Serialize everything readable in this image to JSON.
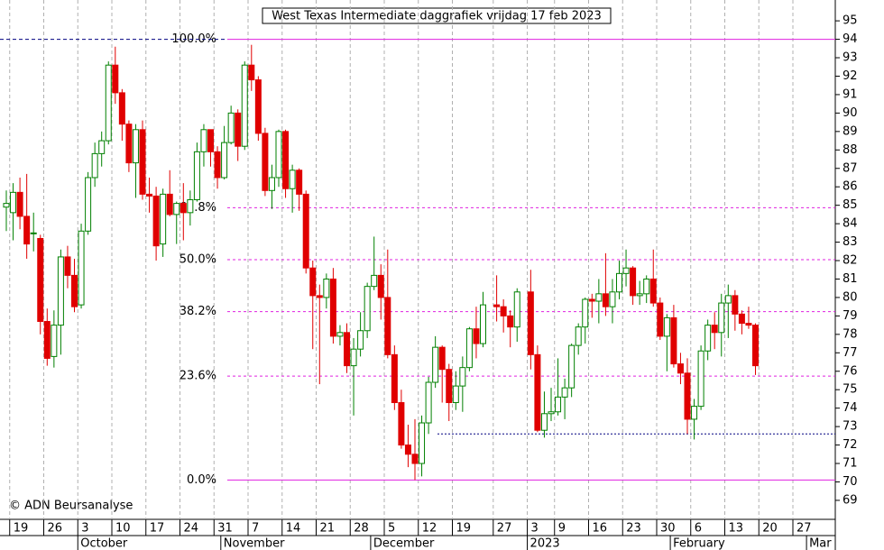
{
  "chart_data": {
    "type": "candlestick",
    "title": "West Texas Intermediate daggrafiek vrijdag 17 feb 2023",
    "annotation": "© ADN Beursanalyse",
    "categories": [
      null,
      "19",
      null,
      null,
      null,
      null,
      "26",
      null,
      null,
      null,
      null,
      "3",
      null,
      null,
      null,
      null,
      "10",
      null,
      null,
      null,
      null,
      "17",
      null,
      null,
      null,
      null,
      "24",
      null,
      null,
      null,
      null,
      "31",
      null,
      null,
      null,
      null,
      "7",
      null,
      null,
      null,
      null,
      "14",
      null,
      null,
      null,
      null,
      "21",
      null,
      null,
      null,
      null,
      "28",
      null,
      null,
      null,
      null,
      "5",
      null,
      null,
      null,
      null,
      "12",
      null,
      null,
      null,
      null,
      "19",
      null,
      null,
      null,
      null,
      null,
      "27",
      null,
      null,
      null,
      null,
      "3",
      null,
      null,
      null,
      "9",
      null,
      null,
      null,
      null,
      "16",
      null,
      null,
      null,
      null,
      "23",
      null,
      null,
      null,
      null,
      "30",
      null,
      null,
      null,
      null,
      "6",
      null,
      null,
      null,
      null,
      "13",
      null,
      null,
      null,
      null,
      "20",
      null,
      null,
      null,
      null,
      "27",
      null,
      null,
      null,
      null
    ],
    "months": [
      null,
      null,
      null,
      null,
      null,
      null,
      null,
      null,
      null,
      null,
      null,
      "October",
      null,
      null,
      null,
      null,
      null,
      null,
      null,
      null,
      null,
      null,
      null,
      null,
      null,
      null,
      null,
      null,
      null,
      null,
      null,
      null,
      "November",
      null,
      null,
      null,
      null,
      null,
      null,
      null,
      null,
      null,
      null,
      null,
      null,
      null,
      null,
      null,
      null,
      null,
      null,
      null,
      null,
      null,
      "December",
      null,
      null,
      null,
      null,
      null,
      null,
      null,
      null,
      null,
      null,
      null,
      null,
      null,
      null,
      null,
      null,
      null,
      null,
      null,
      null,
      null,
      null,
      "2023",
      null,
      null,
      null,
      null,
      null,
      null,
      null,
      null,
      null,
      null,
      null,
      null,
      null,
      null,
      null,
      null,
      null,
      null,
      null,
      null,
      "February",
      null,
      null,
      null,
      null,
      null,
      null,
      null,
      null,
      null,
      null,
      null,
      null,
      null,
      null,
      null,
      null,
      null,
      null,
      null,
      "Mar",
      null,
      null
    ],
    "open": [
      84.9,
      84.6,
      85.7,
      84.4,
      83.5,
      83.2,
      78.7,
      76.8,
      78.5,
      82.2,
      81.2,
      79.6,
      83.6,
      86.5,
      87.8,
      88.5,
      92.6,
      91.1,
      89.4,
      87.3,
      89.1,
      85.6,
      85.5,
      82.9,
      85.6,
      84.5,
      85.1,
      84.6,
      85.3,
      87.9,
      89.1,
      87.9,
      86.5,
      88.4,
      90.0,
      88.2,
      92.6,
      91.8,
      88.9,
      85.8,
      86.5,
      89.0,
      85.9,
      86.9,
      85.6,
      81.6,
      80.1,
      80.0,
      81.0,
      77.9,
      78.1,
      76.3,
      77.2,
      78.2,
      80.6,
      81.2,
      80.0,
      76.9,
      74.3,
      72.0,
      71.5,
      71.0,
      73.2,
      75.4,
      77.3,
      76.1,
      74.3,
      75.2,
      76.2,
      78.3,
      77.5,
      null,
      79.6,
      79.5,
      79.0,
      78.4,
      null,
      80.3,
      76.9,
      72.8,
      73.7,
      73.8,
      74.6,
      75.1,
      77.4,
      78.4,
      79.9,
      79.8,
      80.2,
      79.5,
      80.3,
      81.3,
      81.6,
      80.1,
      80.2,
      81.0,
      79.7,
      77.9,
      78.9,
      76.4,
      75.9,
      73.4,
      74.1,
      77.1,
      78.5,
      78.1,
      79.7,
      80.1,
      79.1,
      78.6,
      78.5,
      null,
      null,
      null,
      null,
      null,
      null,
      null,
      null,
      null,
      null
    ],
    "high": [
      85.8,
      86.2,
      86.5,
      86.7,
      84.6,
      83.4,
      79.4,
      79.3,
      82.6,
      82.8,
      82.1,
      84.0,
      86.8,
      88.4,
      89.0,
      92.8,
      93.6,
      91.3,
      89.6,
      89.4,
      89.6,
      86.5,
      86.0,
      85.9,
      86.9,
      85.2,
      86.2,
      85.8,
      88.4,
      89.4,
      89.1,
      88.2,
      89.3,
      90.4,
      90.2,
      92.8,
      93.7,
      92.0,
      89.2,
      87.2,
      89.1,
      89.1,
      87.2,
      87.0,
      85.8,
      82.0,
      80.7,
      81.3,
      81.6,
      78.5,
      78.6,
      77.8,
      79.2,
      80.8,
      83.3,
      81.8,
      82.6,
      77.4,
      75.0,
      73.1,
      73.4,
      73.6,
      75.7,
      77.9,
      77.4,
      76.4,
      76.0,
      76.8,
      78.4,
      79.5,
      80.3,
      null,
      81.2,
      79.9,
      79.3,
      80.5,
      null,
      81.5,
      77.4,
      74.9,
      75.1,
      76.7,
      75.6,
      77.5,
      78.6,
      80.0,
      80.2,
      81.0,
      82.4,
      81.0,
      82.0,
      82.6,
      81.7,
      80.9,
      81.2,
      82.6,
      80.0,
      79.1,
      79.6,
      77.0,
      76.7,
      74.5,
      77.4,
      78.8,
      79.2,
      80.2,
      80.7,
      80.4,
      79.3,
      79.5,
      78.6,
      null,
      null,
      null,
      null,
      null,
      null,
      null,
      null,
      null,
      null
    ],
    "low": [
      83.6,
      83.1,
      83.7,
      82.1,
      82.5,
      78.0,
      76.3,
      76.2,
      76.9,
      80.5,
      79.2,
      79.4,
      83.4,
      86.0,
      87.1,
      88.3,
      90.5,
      88.5,
      86.8,
      85.4,
      85.3,
      84.6,
      82.0,
      82.2,
      84.4,
      82.9,
      83.1,
      83.9,
      85.2,
      87.1,
      87.1,
      85.9,
      86.4,
      88.3,
      87.4,
      88.0,
      91.2,
      88.5,
      85.5,
      84.8,
      86.0,
      85.4,
      84.6,
      84.7,
      81.3,
      77.2,
      75.3,
      79.4,
      77.5,
      77.4,
      75.9,
      73.6,
      76.8,
      77.8,
      80.4,
      78.8,
      76.7,
      73.9,
      71.8,
      70.8,
      70.1,
      70.3,
      72.6,
      75.1,
      74.3,
      73.3,
      73.9,
      73.8,
      76.0,
      76.7,
      77.3,
      null,
      78.7,
      78.1,
      77.3,
      77.6,
      null,
      76.1,
      72.7,
      72.4,
      73.3,
      73.6,
      73.4,
      74.6,
      76.9,
      77.5,
      78.9,
      78.6,
      79.0,
      78.6,
      79.9,
      80.6,
      79.6,
      79.6,
      79.7,
      79.5,
      77.7,
      76.0,
      76.2,
      75.3,
      72.6,
      72.3,
      73.9,
      76.6,
      77.2,
      76.8,
      77.8,
      78.2,
      78.0,
      78.3,
      75.8,
      null,
      null,
      null,
      null,
      null,
      null,
      null,
      null,
      null,
      null
    ],
    "close": [
      85.1,
      85.7,
      84.4,
      82.9,
      83.5,
      78.7,
      76.7,
      78.5,
      82.2,
      81.2,
      79.5,
      83.6,
      86.5,
      87.8,
      88.5,
      92.6,
      91.1,
      89.4,
      87.3,
      89.1,
      85.6,
      85.5,
      82.8,
      85.6,
      84.5,
      85.1,
      84.6,
      85.3,
      87.9,
      89.1,
      87.9,
      86.5,
      88.4,
      90.0,
      88.2,
      92.6,
      91.8,
      88.9,
      85.8,
      86.5,
      89.0,
      85.9,
      86.9,
      85.6,
      81.6,
      80.1,
      80.0,
      81.0,
      77.9,
      78.1,
      76.3,
      77.2,
      78.2,
      80.6,
      81.2,
      80.0,
      76.9,
      74.3,
      72.0,
      71.5,
      71.0,
      73.2,
      75.4,
      77.3,
      76.1,
      74.3,
      75.2,
      76.2,
      78.3,
      77.5,
      79.6,
      null,
      79.5,
      79.0,
      78.4,
      80.3,
      null,
      76.9,
      72.8,
      73.7,
      73.8,
      74.6,
      75.1,
      77.4,
      78.4,
      79.9,
      79.8,
      80.2,
      79.5,
      80.3,
      81.3,
      81.6,
      80.1,
      80.2,
      81.0,
      79.7,
      77.9,
      78.9,
      76.4,
      75.9,
      73.4,
      74.1,
      77.1,
      78.5,
      78.1,
      79.7,
      80.1,
      79.1,
      78.6,
      78.5,
      76.3,
      null,
      null,
      null,
      null,
      null,
      null,
      null,
      null,
      null,
      null
    ],
    "up_color": "#008000",
    "down_color": "#e00000",
    "levels": [
      {
        "label": "100.0%",
        "value": 94.0,
        "style": "solid"
      },
      {
        "label": "61.8%",
        "value": 84.87,
        "style": "dashed"
      },
      {
        "label": "50.0%",
        "value": 82.05,
        "style": "dashed"
      },
      {
        "label": "38.2%",
        "value": 79.23,
        "style": "dashed"
      },
      {
        "label": "23.6%",
        "value": 75.74,
        "style": "dashed"
      },
      {
        "label": "0.0%",
        "value": 70.1,
        "style": "solid"
      }
    ],
    "level_color": "#e020e0",
    "reference_lines": [
      94.0,
      72.6
    ],
    "reference_color": "#000080",
    "ylim": [
      67.97,
      96.13
    ],
    "yticks": [
      69,
      70,
      71,
      72,
      73,
      74,
      75,
      76,
      77,
      78,
      79,
      80,
      81,
      82,
      83,
      84,
      85,
      86,
      87,
      88,
      89,
      90,
      91,
      92,
      93,
      94,
      95
    ],
    "grid": true
  }
}
